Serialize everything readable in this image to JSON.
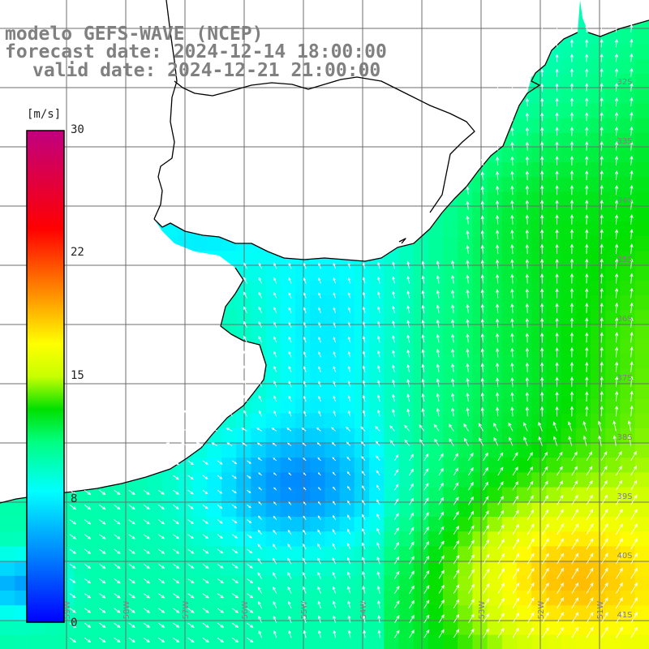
{
  "header": {
    "model": "modelo GEFS-WAVE (NCEP)",
    "forecast": "forecast date: 2024-12-14 18:00:00",
    "valid": "valid date: 2024-12-21 21:00:00"
  },
  "colorbar": {
    "unit": "[m/s]",
    "ticks": [
      "30",
      "22",
      "15",
      "8",
      "0"
    ],
    "stops": [
      {
        "value": 0,
        "color": "#0000ff"
      },
      {
        "value": 4,
        "color": "#0080ff"
      },
      {
        "value": 8,
        "color": "#00ffff"
      },
      {
        "value": 11,
        "color": "#00ff80"
      },
      {
        "value": 13,
        "color": "#00e000"
      },
      {
        "value": 15,
        "color": "#c8ff00"
      },
      {
        "value": 17,
        "color": "#ffff00"
      },
      {
        "value": 20,
        "color": "#ff9000"
      },
      {
        "value": 24,
        "color": "#ff0000"
      },
      {
        "value": 30,
        "color": "#c00080"
      }
    ]
  },
  "lat_labels": [
    "32S",
    "33S",
    "34S",
    "35S",
    "36S",
    "37S",
    "38S",
    "39S",
    "40S",
    "41S"
  ],
  "lon_labels": [
    "59W",
    "58W",
    "57W",
    "56W",
    "55W",
    "54W",
    "53W",
    "52W",
    "51W"
  ],
  "colors": {
    "land": "#ffffff",
    "coast": "#000000",
    "grid": "#6e6e6e",
    "arrow": "#ffffff",
    "title": "#808080"
  }
}
